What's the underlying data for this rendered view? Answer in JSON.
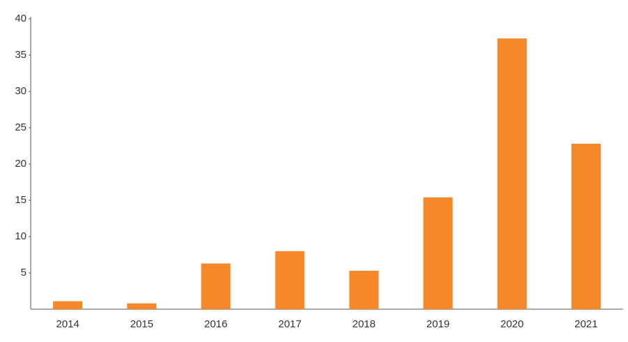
{
  "chart_data": {
    "type": "bar",
    "categories": [
      "2014",
      "2015",
      "2016",
      "2017",
      "2018",
      "2019",
      "2020",
      "2021"
    ],
    "values": [
      1.1,
      0.8,
      6.3,
      8.0,
      5.3,
      15.4,
      37.3,
      22.8
    ],
    "color": "#f5892a",
    "ylim": [
      0,
      40
    ],
    "yticks": [
      5,
      10,
      15,
      20,
      25,
      30,
      35,
      40
    ],
    "grid": false
  }
}
